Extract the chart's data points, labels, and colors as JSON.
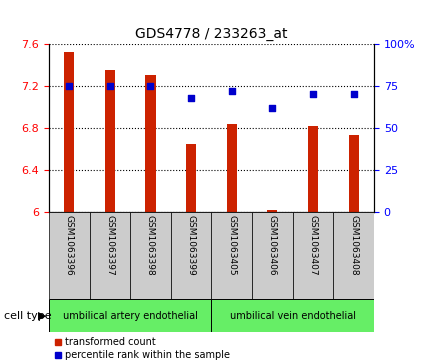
{
  "title": "GDS4778 / 233263_at",
  "samples": [
    "GSM1063396",
    "GSM1063397",
    "GSM1063398",
    "GSM1063399",
    "GSM1063405",
    "GSM1063406",
    "GSM1063407",
    "GSM1063408"
  ],
  "bar_values": [
    7.52,
    7.35,
    7.3,
    6.65,
    6.84,
    6.02,
    6.82,
    6.73
  ],
  "percentile_values": [
    75,
    75,
    75,
    68,
    72,
    62,
    70,
    70
  ],
  "ylim_left": [
    6.0,
    7.6
  ],
  "ylim_right": [
    0,
    100
  ],
  "yticks_left": [
    6.0,
    6.4,
    6.8,
    7.2,
    7.6
  ],
  "yticks_right": [
    0,
    25,
    50,
    75,
    100
  ],
  "bar_color": "#cc2200",
  "dot_color": "#0000cc",
  "cell_types": [
    "umbilical artery endothelial",
    "umbilical vein endothelial"
  ],
  "cell_bg_color": "#66ee66",
  "sample_bg_color": "#cccccc",
  "cell_type_label": "cell type",
  "legend_bar": "transformed count",
  "legend_dot": "percentile rank within the sample",
  "title_fontsize": 10,
  "tick_fontsize": 8,
  "label_fontsize": 8
}
